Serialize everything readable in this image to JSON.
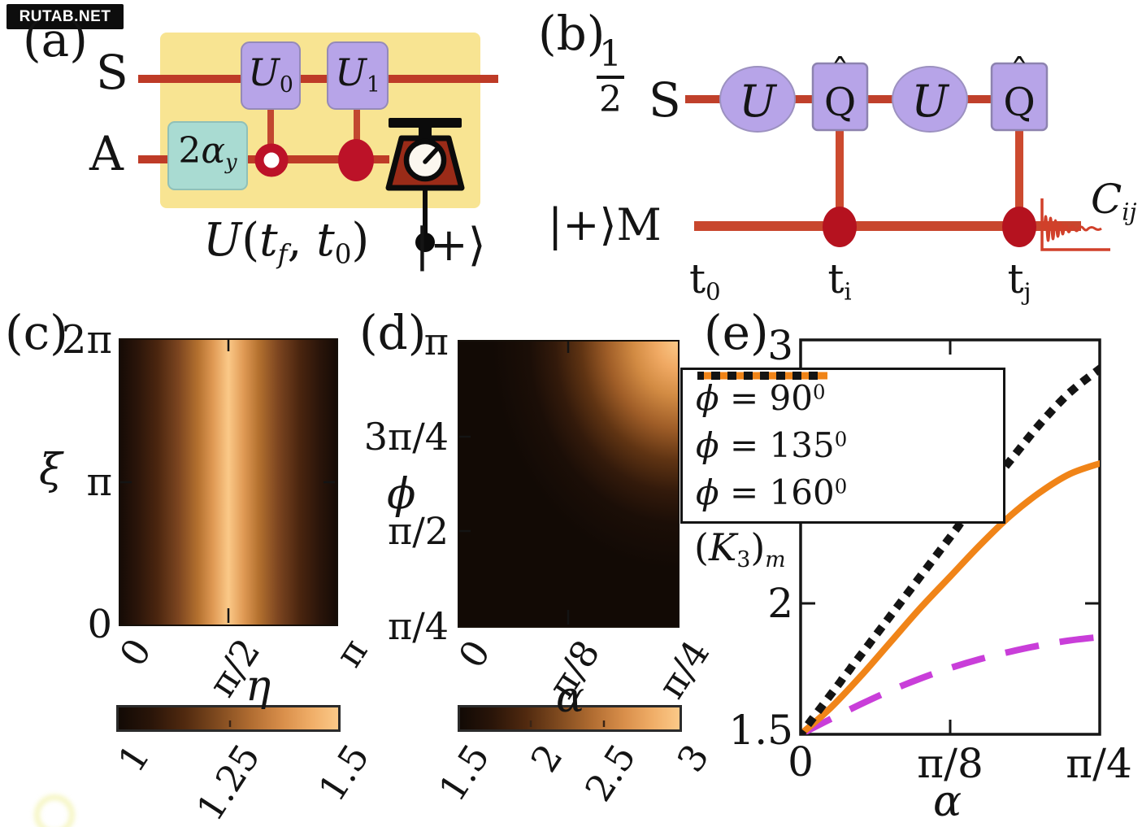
{
  "watermark": {
    "text": "RUTAB.NET"
  },
  "panel_a": {
    "label": "(a)",
    "wire_s": "S",
    "wire_a": "A",
    "gate_u0": [
      {
        "t": "U",
        "i": 1
      },
      {
        "t": "0",
        "sub": 1
      }
    ],
    "gate_u1": [
      {
        "t": "U",
        "i": 1
      },
      {
        "t": "1",
        "sub": 1
      }
    ],
    "gate_2alpha": [
      {
        "t": "2"
      },
      {
        "t": "α",
        "i": 1
      },
      {
        "t": "y",
        "sub": 1,
        "i": 1
      }
    ],
    "evolution": [
      {
        "t": "U",
        "i": 1
      },
      {
        "t": "("
      },
      {
        "t": "t",
        "i": 1
      },
      {
        "t": "f",
        "sub": 1,
        "i": 1
      },
      {
        "t": ", "
      },
      {
        "t": "t",
        "i": 1
      },
      {
        "t": "0",
        "sub": 1
      },
      {
        "t": ")"
      }
    ],
    "plus_ket": "|+⟩"
  },
  "panel_b": {
    "label": "(b)",
    "fraction_num": "1",
    "fraction_den": "2",
    "wire_s": "S",
    "gate_u_first": [
      {
        "t": "U",
        "i": 1
      }
    ],
    "gate_u_second": [
      {
        "t": "U",
        "i": 1
      }
    ],
    "gate_q_hat": "ˆ",
    "gate_q_letter": "Q",
    "m_input": [
      {
        "t": "|+⟩"
      },
      {
        "t": "M"
      }
    ],
    "time_t0": [
      {
        "t": "t"
      },
      {
        "t": "0",
        "sub": 1
      }
    ],
    "time_ti": [
      {
        "t": "t"
      },
      {
        "t": "i",
        "sub": 1
      }
    ],
    "time_tj": [
      {
        "t": "t"
      },
      {
        "t": "j",
        "sub": 1
      }
    ],
    "correlation": [
      {
        "t": "C",
        "i": 1
      },
      {
        "t": "ij",
        "sub": 1,
        "i": 1
      }
    ]
  },
  "panel_c": {
    "label": "(c)",
    "ylabel": "ξ",
    "xlabel": "η",
    "ytick_top": "2π",
    "ytick_mid": "π",
    "ytick_bot": "0",
    "xtick_0": "0",
    "xtick_1": "π/2",
    "xtick_2": "π",
    "cbar_0": "1",
    "cbar_1": "1.25",
    "cbar_2": "1.5"
  },
  "panel_d": {
    "label": "(d)",
    "ylabel": "ϕ",
    "xlabel": "α",
    "ytick_0": "π",
    "ytick_1": "3π/4",
    "ytick_2": "π/2",
    "ytick_3": "π/4",
    "xtick_0": "0",
    "xtick_1": "π/8",
    "xtick_2": "π/4",
    "cbar_0": "1.5",
    "cbar_1": "2",
    "cbar_2": "2.5",
    "cbar_3": "3"
  },
  "panel_e": {
    "label": "(e)",
    "ylabel": [
      {
        "t": "("
      },
      {
        "t": "K",
        "i": 1
      },
      {
        "t": "3",
        "sub": 1
      },
      {
        "t": ")"
      },
      {
        "t": "m",
        "sub": 1,
        "i": 1
      }
    ],
    "xlabel": "α",
    "ytick_top": "3",
    "ytick_mid": "2",
    "ytick_bot": "1.5",
    "xtick_0": "0",
    "xtick_1": "π/8",
    "xtick_2": "π/4",
    "legend": [
      {
        "runs": [
          {
            "t": "ϕ",
            "i": 1
          },
          {
            "t": " = 90"
          },
          {
            "t": "0",
            "sup": 1
          }
        ],
        "color": "#c93ed9",
        "dash": "56 48",
        "width": 9,
        "cap": "butt"
      },
      {
        "runs": [
          {
            "t": "ϕ",
            "i": 1
          },
          {
            "t": " = 135"
          },
          {
            "t": "0",
            "sup": 1
          }
        ],
        "color": "#f08418",
        "dash": "",
        "width": 9,
        "cap": "butt"
      },
      {
        "runs": [
          {
            "t": "ϕ",
            "i": 1
          },
          {
            "t": " = 160"
          },
          {
            "t": "0",
            "sup": 1
          }
        ],
        "color": "#141414",
        "dash": "1 19",
        "width": 10,
        "cap": "square"
      }
    ]
  },
  "chart_data": [
    {
      "type": "heatmap",
      "panel": "c",
      "xlabel": "η",
      "ylabel": "ξ",
      "xlim": [
        "0",
        "π"
      ],
      "ylim": [
        "0",
        "2π"
      ],
      "xticks": [
        "0",
        "π/2",
        "π"
      ],
      "yticks": [
        "0",
        "π",
        "2π"
      ],
      "value_range": [
        1,
        1.5
      ],
      "colorbar_ticks": [
        1,
        1.25,
        1.5
      ],
      "pattern": "value ≈ 1 + 0.5·sin(η), uniform in ξ; bright vertical band at η = π/2, dark at η = 0 and η = π"
    },
    {
      "type": "heatmap",
      "panel": "d",
      "xlabel": "α",
      "ylabel": "ϕ",
      "xlim": [
        "0",
        "π/4"
      ],
      "ylim": [
        "π/4",
        "π"
      ],
      "xticks": [
        "0",
        "π/8",
        "π/4"
      ],
      "yticks": [
        "π/4",
        "π/2",
        "3π/4",
        "π"
      ],
      "value_range": [
        1.5,
        3
      ],
      "colorbar_ticks": [
        1.5,
        2,
        2.5,
        3
      ],
      "pattern": "value grows toward (α = π/4, ϕ = π); bright top-right corner, dark lower-left region"
    },
    {
      "type": "line",
      "panel": "e",
      "xlabel": "α",
      "ylabel": "(K3)m",
      "xlim": [
        "0",
        "π/4"
      ],
      "ylim": [
        1.5,
        3
      ],
      "xticks": [
        "0",
        "π/8",
        "π/4"
      ],
      "yticks": [
        1.5,
        2,
        3
      ],
      "legend_position": "northwest",
      "grid": false,
      "series": [
        {
          "name": "ϕ = 90°",
          "color": "#c93ed9",
          "dash": "42 26",
          "width": 8,
          "cap": "butt",
          "x_frac": [
            0,
            0.1,
            0.2,
            0.3,
            0.4,
            0.5,
            0.6,
            0.7,
            0.8,
            0.9,
            1
          ],
          "y": [
            1.5,
            1.558,
            1.614,
            1.666,
            1.712,
            1.752,
            1.786,
            1.814,
            1.838,
            1.857,
            1.87
          ]
        },
        {
          "name": "ϕ = 135°",
          "color": "#f08418",
          "dash": "",
          "width": 8,
          "cap": "round",
          "x_frac": [
            0,
            0.1,
            0.2,
            0.3,
            0.4,
            0.5,
            0.6,
            0.7,
            0.8,
            0.9,
            1
          ],
          "y": [
            1.5,
            1.6,
            1.72,
            1.85,
            1.98,
            2.1,
            2.22,
            2.33,
            2.42,
            2.49,
            2.53
          ]
        },
        {
          "name": "ϕ = 160°",
          "color": "#141414",
          "dash": "1 19",
          "width": 10,
          "cap": "square",
          "x_frac": [
            0,
            0.1,
            0.2,
            0.3,
            0.4,
            0.5,
            0.6,
            0.7,
            0.8,
            0.9,
            1
          ],
          "y": [
            1.5,
            1.65,
            1.8,
            1.95,
            2.1,
            2.25,
            2.4,
            2.54,
            2.68,
            2.8,
            2.89
          ]
        }
      ]
    }
  ]
}
